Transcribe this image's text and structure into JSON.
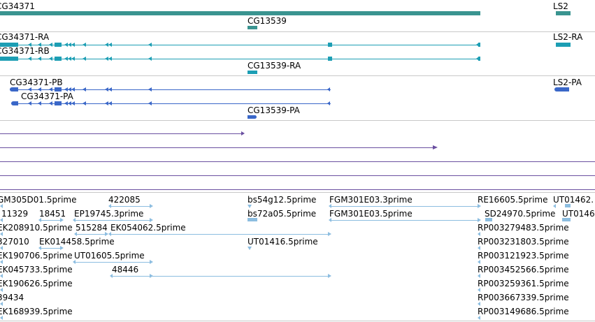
{
  "colors": {
    "gene": "#3a9490",
    "transcript": "#1c9eb4",
    "protein": "#3a67c8",
    "purple": "#6a4fa0",
    "est": "#8cbde0",
    "separator": "#c8c8c8",
    "text": "#000000"
  },
  "gene_track": {
    "labels": [
      "CG34371",
      "LS2",
      "CG13539"
    ]
  },
  "transcript_track": {
    "labels": [
      "CG34371-RA",
      "LS2-RA",
      "CG34371-RB",
      "CG13539-RA"
    ]
  },
  "protein_track": {
    "labels": [
      "CG34371-PB",
      "LS2-PA",
      "CG34371-PA",
      "CG13539-PA"
    ]
  },
  "est_track": {
    "labels": [
      "GM305D01.5prime",
      "422085",
      "bs54g12.5prime",
      "FGM301E03.3prime",
      "RE16605.5prime",
      "UT01462.",
      "11329",
      "18451",
      "EP19745.3prime",
      "bs72a05.5prime",
      "FGM301E03.5prime",
      "SD24970.5prime",
      "UT0146",
      "EK208910.5prime",
      "515284",
      "EK054062.5prime",
      "RP003279483.5prime",
      "327010",
      "EK014458.5prime",
      "UT01416.5prime",
      "RP003231803.5prime",
      "EK190706.5prime",
      "UT01605.5prime",
      "RP003121923.5prime",
      "EK045733.5prime",
      "48446",
      "RP003452566.5prime",
      "EK190626.5prime",
      "RP003259361.5prime",
      "39434",
      "RP003667339.5prime",
      "EK168939.5prime",
      "RP003149686.5prime"
    ]
  }
}
